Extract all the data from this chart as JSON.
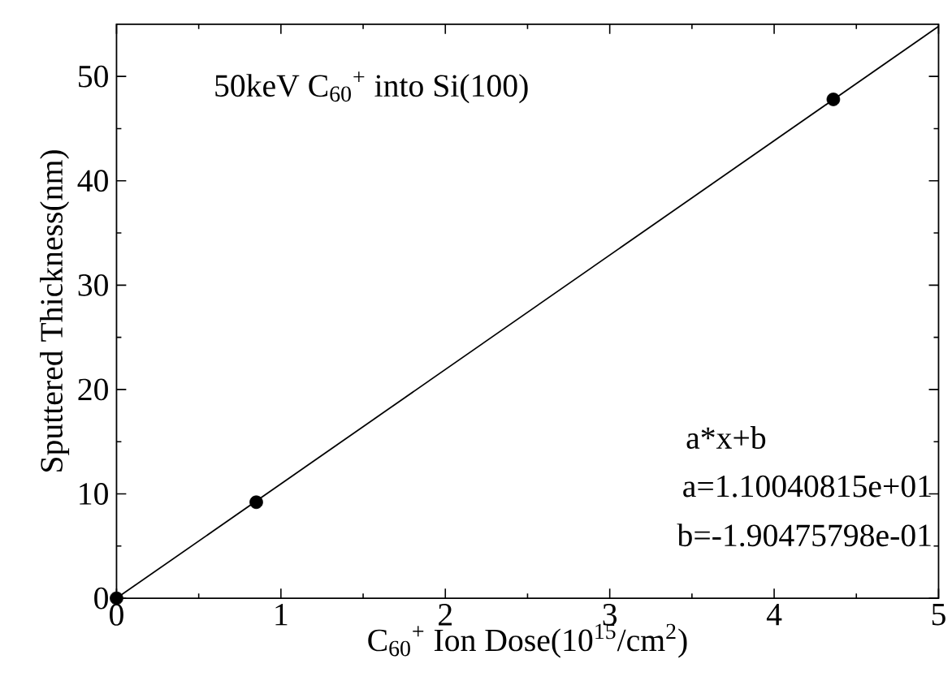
{
  "chart_data": {
    "type": "scatter",
    "xlabel": "C$_{60}$$^{+}$ Ion Dose(10$^{15}$/cm$^{2}$)",
    "ylabel": "Sputtered Thickness(nm)",
    "xlim": [
      0,
      5
    ],
    "xticks": [
      0,
      1,
      2,
      3,
      4,
      5
    ],
    "ylim": [
      0,
      55
    ],
    "yticks": [
      0,
      10,
      20,
      30,
      40,
      50
    ],
    "marker": "circle",
    "annotations": [
      "50keV C$_{60}$$^{+}$ into Si(100)",
      "a*x+b",
      "a=1.10040815e+01",
      "b=-1.90475798e-01"
    ],
    "series": [
      {
        "color": "#000000",
        "x": [
          0,
          0.85,
          4.36
        ],
        "values": [
          0,
          9.2,
          47.8
        ]
      },
      {
        "type": "line",
        "marker": "none",
        "color": "#000000",
        "x": [
          0,
          5
        ],
        "values": [
          0,
          54.8
        ]
      }
    ]
  }
}
